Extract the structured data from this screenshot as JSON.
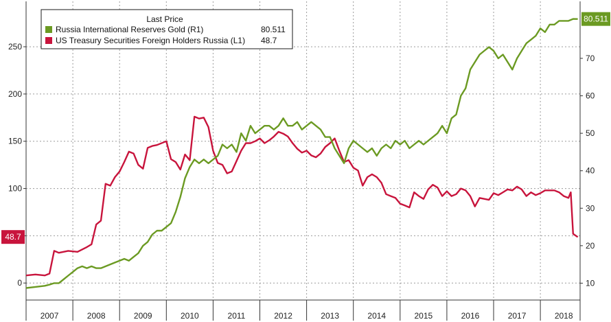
{
  "chart_data": {
    "type": "line",
    "title": "",
    "legend": {
      "placement": "top-left",
      "header": "Last Price",
      "entries": [
        {
          "label": "Russia International Reserves Gold  (R1)",
          "value": "80.511",
          "color": "#6b9a22"
        },
        {
          "label": "US Treasury Securities Foreign Holders Russia  (L1)",
          "value": "48.7",
          "color": "#c8143c"
        }
      ]
    },
    "x_axis": {
      "range": [
        2006.5,
        2018.35
      ],
      "year_labels": [
        "2007",
        "2008",
        "2009",
        "2010",
        "2011",
        "2012",
        "2013",
        "2014",
        "2015",
        "2016",
        "2017",
        "2018"
      ],
      "year_label_positions": [
        2007,
        2008,
        2009,
        2010,
        2011,
        2012,
        2013,
        2014,
        2015,
        2016,
        2017,
        2018
      ]
    },
    "y_left": {
      "range": [
        -18,
        298
      ],
      "ticks": [
        0,
        50,
        100,
        150,
        200,
        250
      ],
      "tick_labels": [
        "0",
        "50",
        "100",
        "150",
        "200",
        "250"
      ]
    },
    "y_right": {
      "range": [
        5.5,
        85.2
      ],
      "ticks": [
        10,
        20,
        30,
        40,
        50,
        60,
        70
      ],
      "tick_labels": [
        "10",
        "20",
        "30",
        "40",
        "50",
        "60",
        "70"
      ]
    },
    "grid": true,
    "series": [
      {
        "name": "US Treasury Securities Foreign Holders Russia",
        "axis": "left",
        "color": "#c8143c",
        "last_label": "48.7",
        "x": [
          2006.5,
          2006.7,
          2006.9,
          2007.0,
          2007.1,
          2007.2,
          2007.4,
          2007.6,
          2007.8,
          2007.9,
          2008.0,
          2008.1,
          2008.2,
          2008.3,
          2008.4,
          2008.5,
          2008.6,
          2008.7,
          2008.8,
          2008.9,
          2009.0,
          2009.1,
          2009.2,
          2009.3,
          2009.5,
          2009.6,
          2009.7,
          2009.8,
          2009.9,
          2010.0,
          2010.1,
          2010.2,
          2010.3,
          2010.4,
          2010.5,
          2010.6,
          2010.7,
          2010.8,
          2010.9,
          2011.0,
          2011.1,
          2011.2,
          2011.3,
          2011.4,
          2011.5,
          2011.6,
          2011.7,
          2011.8,
          2011.9,
          2012.0,
          2012.1,
          2012.2,
          2012.3,
          2012.4,
          2012.5,
          2012.6,
          2012.7,
          2012.8,
          2012.9,
          2013.0,
          2013.1,
          2013.2,
          2013.3,
          2013.4,
          2013.5,
          2013.6,
          2013.7,
          2013.8,
          2013.9,
          2014.0,
          2014.1,
          2014.2,
          2014.3,
          2014.4,
          2014.5,
          2014.6,
          2014.7,
          2014.8,
          2014.9,
          2015.0,
          2015.1,
          2015.2,
          2015.3,
          2015.4,
          2015.5,
          2015.6,
          2015.7,
          2015.8,
          2015.9,
          2016.0,
          2016.1,
          2016.2,
          2016.3,
          2016.4,
          2016.5,
          2016.6,
          2016.7,
          2016.8,
          2016.9,
          2017.0,
          2017.1,
          2017.2,
          2017.3,
          2017.4,
          2017.5,
          2017.6,
          2017.7,
          2017.8,
          2017.9,
          2018.0,
          2018.1,
          2018.15,
          2018.2,
          2018.3
        ],
        "values": [
          8,
          9,
          8,
          10,
          34,
          32,
          34,
          33,
          38,
          41,
          62,
          66,
          105,
          103,
          112,
          118,
          128,
          139,
          137,
          125,
          121,
          143,
          145,
          146,
          150,
          131,
          128,
          120,
          136,
          130,
          176,
          174,
          175,
          165,
          140,
          127,
          125,
          116,
          118,
          129,
          140,
          148,
          148,
          150,
          153,
          148,
          151,
          155,
          160,
          158,
          155,
          148,
          142,
          138,
          140,
          135,
          133,
          137,
          144,
          148,
          153,
          140,
          128,
          130,
          122,
          119,
          103,
          112,
          115,
          112,
          106,
          94,
          92,
          90,
          84,
          82,
          80,
          96,
          92,
          89,
          99,
          104,
          101,
          92,
          97,
          92,
          94,
          100,
          98,
          92,
          81,
          90,
          89,
          88,
          95,
          93,
          96,
          99,
          98,
          102,
          99,
          92,
          96,
          93,
          95,
          98,
          98,
          98,
          96,
          92,
          90,
          96,
          52,
          48.7
        ]
      },
      {
        "name": "Russia International Reserves Gold",
        "axis": "right",
        "color": "#6b9a22",
        "last_label": "80.511",
        "x": [
          2006.5,
          2006.7,
          2006.9,
          2007.0,
          2007.1,
          2007.2,
          2007.3,
          2007.4,
          2007.5,
          2007.6,
          2007.7,
          2007.8,
          2007.9,
          2008.0,
          2008.1,
          2008.2,
          2008.3,
          2008.4,
          2008.5,
          2008.6,
          2008.7,
          2008.8,
          2008.9,
          2009.0,
          2009.1,
          2009.2,
          2009.3,
          2009.4,
          2009.5,
          2009.6,
          2009.7,
          2009.8,
          2009.9,
          2010.0,
          2010.1,
          2010.2,
          2010.3,
          2010.4,
          2010.5,
          2010.6,
          2010.7,
          2010.8,
          2010.9,
          2011.0,
          2011.1,
          2011.2,
          2011.3,
          2011.4,
          2011.5,
          2011.6,
          2011.7,
          2011.8,
          2011.9,
          2012.0,
          2012.1,
          2012.2,
          2012.3,
          2012.4,
          2012.5,
          2012.6,
          2012.7,
          2012.8,
          2012.9,
          2013.0,
          2013.1,
          2013.2,
          2013.3,
          2013.4,
          2013.5,
          2013.6,
          2013.7,
          2013.8,
          2013.9,
          2014.0,
          2014.1,
          2014.2,
          2014.3,
          2014.4,
          2014.5,
          2014.6,
          2014.7,
          2014.8,
          2014.9,
          2015.0,
          2015.1,
          2015.2,
          2015.3,
          2015.4,
          2015.5,
          2015.6,
          2015.7,
          2015.8,
          2015.9,
          2016.0,
          2016.1,
          2016.2,
          2016.3,
          2016.4,
          2016.5,
          2016.6,
          2016.7,
          2016.8,
          2016.9,
          2017.0,
          2017.1,
          2017.2,
          2017.3,
          2017.4,
          2017.5,
          2017.6,
          2017.7,
          2017.8,
          2017.9,
          2018.0,
          2018.1,
          2018.2,
          2018.3
        ],
        "values": [
          8.7,
          9.0,
          9.3,
          9.6,
          10,
          10,
          11,
          12,
          13,
          14,
          14.5,
          14,
          14.5,
          14,
          14,
          14.5,
          15,
          15.5,
          16,
          16.5,
          16,
          17,
          18,
          20,
          21,
          23,
          24,
          24,
          25,
          26,
          29,
          33,
          38,
          41,
          43,
          42,
          43,
          42,
          43,
          44,
          47,
          46,
          47,
          45,
          50,
          48,
          52,
          50,
          51,
          52,
          52,
          51,
          52,
          54,
          52,
          52,
          53,
          51,
          52,
          53,
          52,
          51,
          49,
          49,
          46,
          44,
          42,
          46,
          48,
          47,
          46,
          45,
          46,
          44,
          46,
          47,
          46,
          48,
          47,
          48,
          46,
          47,
          48,
          47,
          48,
          49,
          50,
          52,
          50,
          54,
          55,
          60,
          62,
          67,
          69,
          71,
          72,
          73,
          72,
          70,
          71,
          69,
          67,
          70,
          72,
          74,
          75,
          76,
          78,
          77,
          79,
          79,
          80,
          80,
          80,
          80.511,
          80.5
        ]
      }
    ]
  }
}
